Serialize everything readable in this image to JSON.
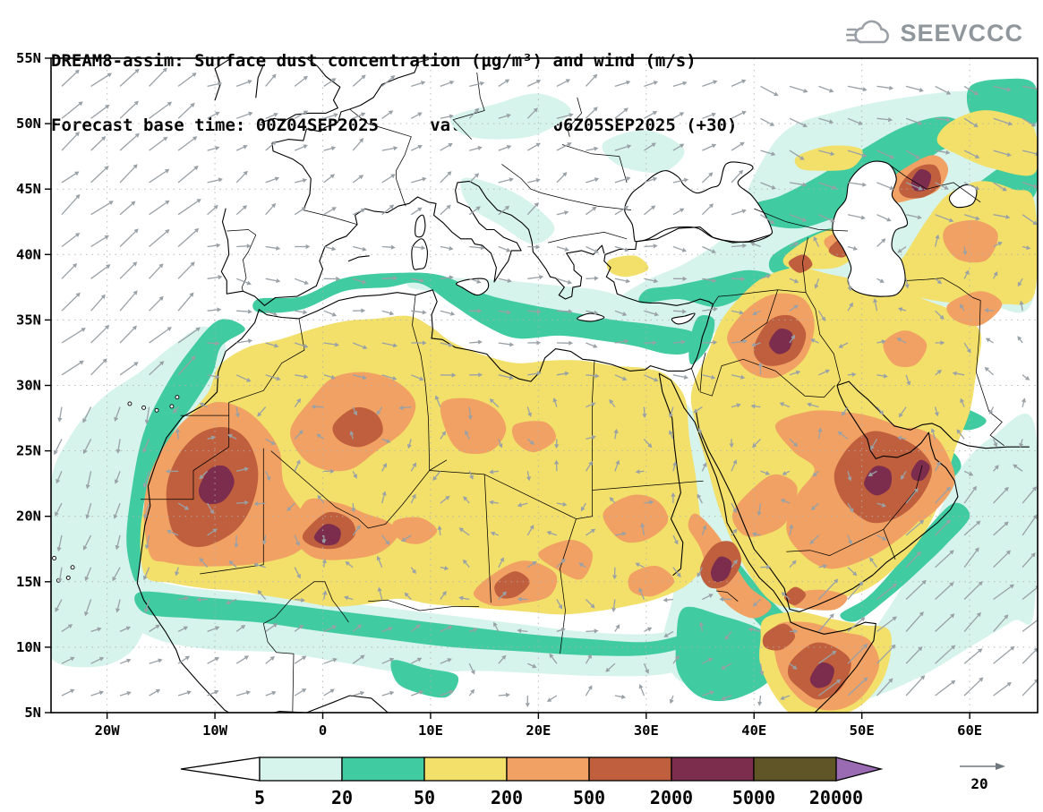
{
  "header": {
    "title_line1": "DREAM8-assim: Surface dust concentration (μg/m³) and wind (m/s)",
    "title_line2": "Forecast base time: 00Z04SEP2025     valid time: 06Z05SEP2025 (+30)",
    "logo_text": "SEEVCCC"
  },
  "chart_data": {
    "type": "heatmap",
    "title": "DREAM8-assim: Surface dust concentration (μg/m³) and wind (m/s)",
    "subtitle": "Forecast base time: 00Z04SEP2025     valid time: 06Z05SEP2025 (+30)",
    "model": "DREAM8-assim",
    "variable": "Surface dust concentration",
    "units": "μg/m³",
    "wind_units": "m/s",
    "forecast_base_time": "00Z04SEP2025",
    "valid_time": "06Z05SEP2025",
    "forecast_hour": "+30",
    "x_axis": {
      "ticks": [
        "20W",
        "10W",
        "0",
        "10E",
        "20E",
        "30E",
        "40E",
        "50E",
        "60E"
      ],
      "range_deg": [
        -25.2,
        66.3
      ]
    },
    "y_axis": {
      "ticks": [
        "5N",
        "10N",
        "15N",
        "20N",
        "25N",
        "30N",
        "35N",
        "40N",
        "45N",
        "50N",
        "55N"
      ],
      "range_deg": [
        5,
        55
      ]
    },
    "grid": true,
    "colorbar": {
      "orientation": "horizontal",
      "levels": [
        "5",
        "20",
        "50",
        "200",
        "500",
        "2000",
        "5000",
        "20000"
      ],
      "colors": [
        "#ffffff",
        "#d6f3ec",
        "#40cba0",
        "#f2e06a",
        "#f0a163",
        "#c05f3d",
        "#7c2d4e",
        "#5f5526",
        "#9a6ab3"
      ]
    },
    "wind_reference": {
      "value": "20",
      "units": "m/s"
    },
    "wind_arrow_color": "#99a1a7",
    "dust_features": [
      {
        "region": "Mauritania / Western Sahara / northern Mali",
        "max_level_ug_m3": "2000-5000"
      },
      {
        "region": "Mali-Niger border near 19N 0E",
        "max_level_ug_m3": "2000-5000"
      },
      {
        "region": "central Algeria",
        "max_level_ug_m3": "500-2000"
      },
      {
        "region": "Libya interior patches",
        "max_level_ug_m3": "200-500"
      },
      {
        "region": "Chad / Sudan belt",
        "max_level_ug_m3": "500-2000"
      },
      {
        "region": "Red Sea coast of Sudan / Eritrea",
        "max_level_ug_m3": "2000-5000"
      },
      {
        "region": "northern Iraq",
        "max_level_ug_m3": "2000-5000"
      },
      {
        "region": "eastern Saudi Arabia / UAE / Oman",
        "max_level_ug_m3": "2000-5000"
      },
      {
        "region": "Somalia / Horn of Africa",
        "max_level_ug_m3": "2000-5000"
      },
      {
        "region": "northeast Caspian lowland",
        "max_level_ug_m3": "2000-5000"
      },
      {
        "region": "broad Sahara and Arabian Peninsula background",
        "max_level_ug_m3": "50-200"
      },
      {
        "region": "Sahel fringe and Mediterranean / Caspian margins",
        "max_level_ug_m3": "5-50"
      }
    ]
  }
}
